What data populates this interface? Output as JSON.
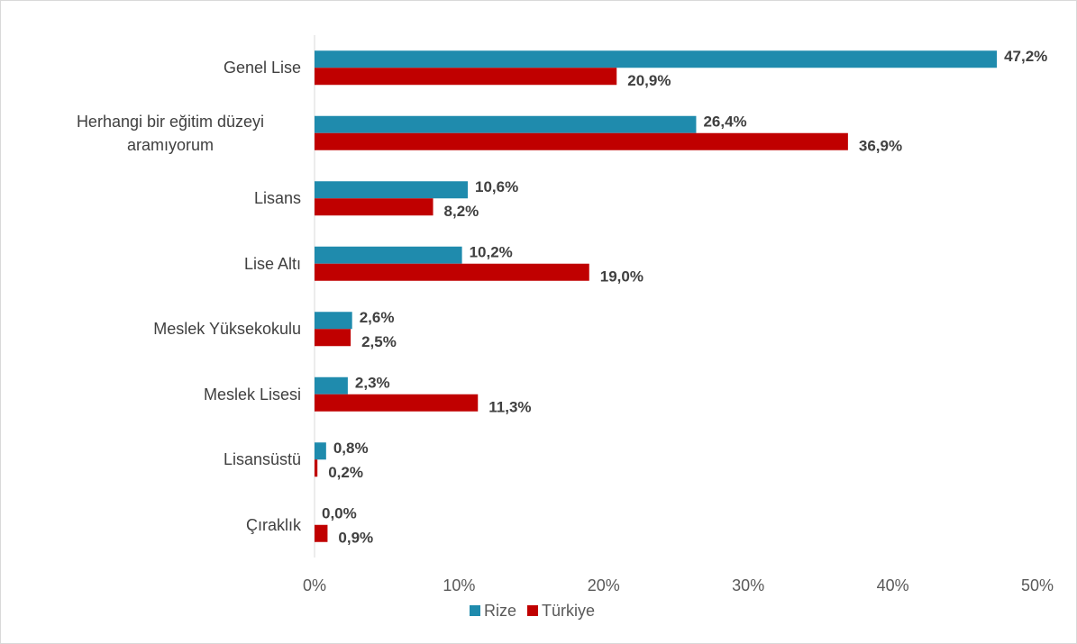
{
  "chart_data": {
    "type": "hbar",
    "categories": [
      "Genel Lise",
      "Herhangi bir eğitim düzeyi aramıyorum",
      "Lisans",
      "Lise Altı",
      "Meslek Yüksekokulu",
      "Meslek Lisesi",
      "Lisansüstü",
      "Çıraklık"
    ],
    "series": [
      {
        "name": "Rize",
        "color": "#1f8bad",
        "values": [
          47.2,
          26.4,
          10.6,
          10.2,
          2.6,
          2.3,
          0.8,
          0.0
        ],
        "value_labels": [
          "47,2%",
          "26,4%",
          "10,6%",
          "10,2%",
          "2,6%",
          "2,3%",
          "0,8%",
          "0,0%"
        ]
      },
      {
        "name": "Türkiye",
        "color": "#c00000",
        "values": [
          20.9,
          36.9,
          8.2,
          19.0,
          2.5,
          11.3,
          0.2,
          0.9
        ],
        "value_labels": [
          "20,9%",
          "36,9%",
          "8,2%",
          "19,0%",
          "2,5%",
          "11,3%",
          "0,2%",
          "0,9%"
        ]
      }
    ],
    "xlim": [
      0,
      50
    ],
    "xticks": [
      {
        "value": 0,
        "label": "0%"
      },
      {
        "value": 10,
        "label": "10%"
      },
      {
        "value": 20,
        "label": "20%"
      },
      {
        "value": 30,
        "label": "30%"
      },
      {
        "value": 40,
        "label": "40%"
      },
      {
        "value": 50,
        "label": "50%"
      }
    ],
    "legend": "bottom"
  }
}
